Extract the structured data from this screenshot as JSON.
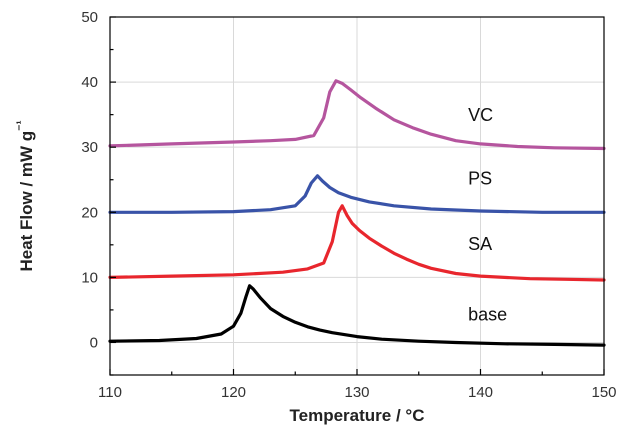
{
  "chart_data": {
    "type": "line",
    "title": "",
    "xlabel": "Temperature / °C",
    "ylabel": "Heat Flow / mW g⁻¹",
    "xlim": [
      110,
      150
    ],
    "ylim": [
      -5,
      50
    ],
    "xticks": [
      110,
      120,
      130,
      140,
      150
    ],
    "yticks": [
      0,
      10,
      20,
      30,
      40,
      50
    ],
    "grid": true,
    "legend": "none",
    "series": [
      {
        "name": "base",
        "color": "#000000",
        "x": [
          110,
          114,
          117,
          119,
          120,
          120.6,
          121.0,
          121.3,
          121.6,
          122.2,
          123,
          124,
          125,
          126,
          127,
          128,
          130,
          132,
          135,
          138,
          142,
          146,
          150
        ],
        "y": [
          0.2,
          0.3,
          0.6,
          1.3,
          2.5,
          4.5,
          7.0,
          8.7,
          8.2,
          6.8,
          5.2,
          4.0,
          3.1,
          2.4,
          1.9,
          1.5,
          0.9,
          0.5,
          0.2,
          0.0,
          -0.2,
          -0.3,
          -0.4
        ]
      },
      {
        "name": "SA",
        "color": "#e8262d",
        "x": [
          110,
          115,
          120,
          124,
          126,
          127.3,
          128.0,
          128.5,
          128.8,
          129.2,
          129.6,
          130.2,
          131,
          132,
          133,
          134,
          135,
          136,
          138,
          140,
          144,
          147,
          150
        ],
        "y": [
          10.0,
          10.2,
          10.4,
          10.8,
          11.3,
          12.2,
          15.5,
          20.0,
          21.0,
          19.5,
          18.3,
          17.2,
          16.0,
          14.8,
          13.7,
          12.8,
          12.0,
          11.4,
          10.6,
          10.2,
          9.8,
          9.7,
          9.6
        ]
      },
      {
        "name": "PS",
        "color": "#3953a8",
        "x": [
          110,
          115,
          120,
          123,
          125,
          125.8,
          126.3,
          126.8,
          127.2,
          127.8,
          128.5,
          129.5,
          131,
          133,
          136,
          140,
          145,
          150
        ],
        "y": [
          20.0,
          20.0,
          20.1,
          20.4,
          21.0,
          22.5,
          24.5,
          25.6,
          24.8,
          23.8,
          23.0,
          22.3,
          21.6,
          21.0,
          20.5,
          20.2,
          20.0,
          20.0
        ]
      },
      {
        "name": "VC",
        "color": "#b5559e",
        "x": [
          110,
          115,
          120,
          123,
          125,
          126.5,
          127.3,
          127.8,
          128.3,
          128.8,
          129.5,
          130.3,
          131.5,
          133,
          134.5,
          136,
          138,
          140,
          143,
          146,
          150
        ],
        "y": [
          30.2,
          30.5,
          30.8,
          31.0,
          31.2,
          31.8,
          34.5,
          38.5,
          40.2,
          39.8,
          38.8,
          37.6,
          36.0,
          34.2,
          33.0,
          32.0,
          31.0,
          30.5,
          30.1,
          29.9,
          29.8
        ]
      }
    ],
    "annotations": [
      {
        "text": "VC",
        "x": 139,
        "y": 34
      },
      {
        "text": "PS",
        "x": 139,
        "y": 24.3
      },
      {
        "text": "SA",
        "x": 139,
        "y": 14.2
      },
      {
        "text": "base",
        "x": 139,
        "y": 3.4
      }
    ]
  }
}
